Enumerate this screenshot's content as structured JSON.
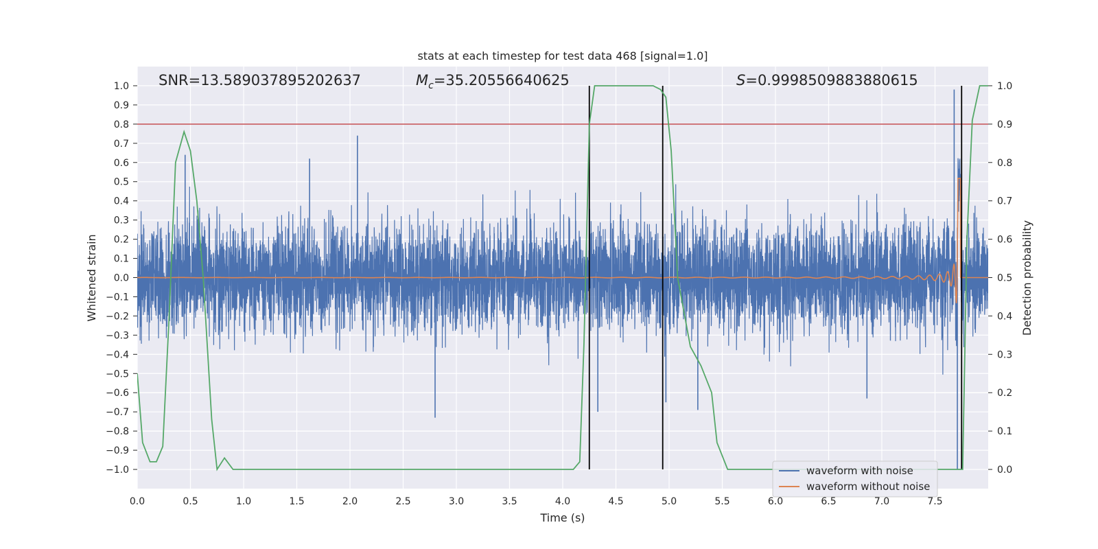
{
  "chart_data": {
    "type": "line",
    "title": "stats at each timestep for test data 468 [signal=1.0]",
    "xlabel": "Time (s)",
    "ylabel": "Whitened strain",
    "y2label": "Detection probability",
    "xlim": [
      0.0,
      8.0
    ],
    "ylim": [
      -1.1,
      1.1
    ],
    "y2lim": [
      -0.05,
      1.05
    ],
    "xticks": [
      "0.0",
      "0.5",
      "1.0",
      "1.5",
      "2.0",
      "2.5",
      "3.0",
      "3.5",
      "4.0",
      "4.5",
      "5.0",
      "5.5",
      "6.0",
      "6.5",
      "7.0",
      "7.5"
    ],
    "yticks": [
      "1.0",
      "0.9",
      "0.8",
      "0.7",
      "0.6",
      "0.5",
      "0.4",
      "0.3",
      "0.2",
      "0.1",
      "0.0",
      "−0.1",
      "−0.2",
      "−0.3",
      "−0.4",
      "−0.5",
      "−0.6",
      "−0.7",
      "−0.8",
      "−0.9",
      "−1.0"
    ],
    "y2ticks": [
      "1.0",
      "0.9",
      "0.8",
      "0.7",
      "0.6",
      "0.5",
      "0.4",
      "0.3",
      "0.2",
      "0.1",
      "0.0"
    ],
    "annotations": {
      "snr": "SNR=13.589037895202637",
      "mc_symbol": "M",
      "mc_sub": "c",
      "mc_value": "=35.20556640625",
      "s_symbol": "S",
      "s_value": "=0.9998509883880615"
    },
    "threshold_line": {
      "y2": 0.9,
      "color": "#c44e52"
    },
    "vertical_lines": [
      4.25,
      4.94,
      7.75
    ],
    "legend": {
      "location": "lower right",
      "entries": [
        "waveform with noise",
        "waveform without noise"
      ]
    },
    "colors": {
      "noisy": "#4c72b0",
      "clean": "#dd8452",
      "prob": "#55a868",
      "vline": "#000000",
      "background": "#eaeaf2",
      "grid": "#ffffff"
    },
    "series": [
      {
        "name": "waveform with noise",
        "description": "dense whitened noisy strain, typical amplitude ±0.35, spikes up to ±0.75, large spike near t=7.7",
        "noise_std": 0.14,
        "spikes": [
          {
            "x": 0.45,
            "y": 0.64
          },
          {
            "x": 1.62,
            "y": 0.62
          },
          {
            "x": 2.07,
            "y": 0.74
          },
          {
            "x": 2.8,
            "y": -0.73
          },
          {
            "x": 4.33,
            "y": -0.7
          },
          {
            "x": 4.97,
            "y": -0.65
          },
          {
            "x": 5.27,
            "y": -0.69
          },
          {
            "x": 6.86,
            "y": -0.63
          },
          {
            "x": 7.68,
            "y": 0.98
          },
          {
            "x": 7.71,
            "y": -1.0
          }
        ]
      },
      {
        "name": "waveform without noise",
        "description": "inspiral chirp, amplitude grows toward merger at ~7.72 s",
        "merger_time": 7.72,
        "peak_amplitude": 0.8
      },
      {
        "name": "detection probability",
        "axis": "y2",
        "x": [
          0.0,
          0.05,
          0.12,
          0.18,
          0.24,
          0.3,
          0.36,
          0.44,
          0.5,
          0.56,
          0.62,
          0.7,
          0.75,
          0.82,
          0.9,
          1.5,
          2.5,
          3.5,
          4.1,
          4.16,
          4.2,
          4.25,
          4.3,
          4.36,
          4.5,
          4.7,
          4.85,
          4.92,
          4.97,
          5.02,
          5.08,
          5.2,
          5.3,
          5.4,
          5.45,
          5.55,
          6.5,
          7.0,
          7.5,
          7.76,
          7.8,
          7.85,
          7.92,
          8.0
        ],
        "y": [
          0.25,
          0.07,
          0.02,
          0.02,
          0.06,
          0.4,
          0.8,
          0.88,
          0.83,
          0.7,
          0.5,
          0.13,
          0.0,
          0.03,
          0.0,
          0.0,
          0.0,
          0.0,
          0.0,
          0.02,
          0.33,
          0.9,
          1.0,
          1.0,
          1.0,
          1.0,
          1.0,
          0.99,
          0.97,
          0.83,
          0.5,
          0.32,
          0.27,
          0.2,
          0.07,
          0.0,
          0.0,
          0.0,
          0.0,
          0.0,
          0.6,
          0.91,
          1.0,
          1.0
        ]
      }
    ]
  }
}
